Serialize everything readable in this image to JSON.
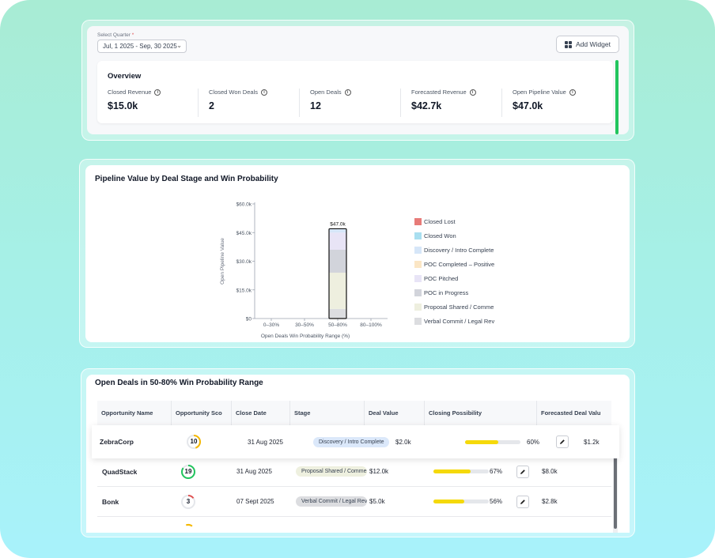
{
  "quarter": {
    "label": "Select Quarter",
    "required_mark": "*",
    "value": "Jul, 1 2025 - Sep, 30 2025"
  },
  "toolbar": {
    "add_widget_label": "Add Widget"
  },
  "overview": {
    "title": "Overview",
    "metrics": [
      {
        "label": "Closed Revenue",
        "value": "$15.0k"
      },
      {
        "label": "Closed Won Deals",
        "value": "2"
      },
      {
        "label": "Open Deals",
        "value": "12"
      },
      {
        "label": "Forecasted Revenue",
        "value": "$42.7k"
      },
      {
        "label": "Open Pipeline Value",
        "value": "$47.0k"
      }
    ],
    "accent_color": "#22c55e"
  },
  "pipeline": {
    "title": "Pipeline Value by Deal Stage and Win Probability"
  },
  "chart_data": {
    "type": "bar",
    "stacked": true,
    "title": "Pipeline Value by Deal Stage and Win Probability",
    "xlabel": "Open Deals Win Probability Range (%)",
    "ylabel": "Open Pipeline Value",
    "categories": [
      "0–30%",
      "30–50%",
      "50–80%",
      "80–100%"
    ],
    "yticks": [
      "$0",
      "$15.0k",
      "$30.0k",
      "$45.0k",
      "$60.0k"
    ],
    "ylim": [
      0,
      60000
    ],
    "total_label": "$47.0k",
    "total_category": "50–80%",
    "grid": false,
    "legend_position": "right",
    "series": [
      {
        "name": "Closed Lost",
        "color": "#e77b78",
        "values": [
          0,
          0,
          0,
          0
        ]
      },
      {
        "name": "Closed Won",
        "color": "#a9dff0",
        "values": [
          0,
          0,
          0,
          0
        ]
      },
      {
        "name": "Discovery / Intro Completed",
        "color": "#d6e6f8",
        "values": [
          0,
          0,
          2000,
          0
        ]
      },
      {
        "name": "POC Completed – Positive",
        "color": "#fbe6c5",
        "values": [
          0,
          0,
          0,
          0
        ]
      },
      {
        "name": "POC Pitched",
        "color": "#e8e4f6",
        "values": [
          0,
          0,
          9000,
          0
        ]
      },
      {
        "name": "POC in Progress",
        "color": "#d2d4db",
        "values": [
          0,
          0,
          12000,
          0
        ]
      },
      {
        "name": "Proposal Shared / Commercials",
        "color": "#eeefdf",
        "values": [
          0,
          0,
          19000,
          0
        ]
      },
      {
        "name": "Verbal Commit / Legal Review",
        "color": "#dcdde0",
        "values": [
          0,
          0,
          5000,
          0
        ]
      }
    ],
    "legend_labels": [
      "Closed Lost",
      "Closed Won",
      "Discovery / Intro Complete",
      "POC Completed – Positive",
      "POC Pitched",
      "POC in Progress",
      "Proposal Shared / Comme",
      "Verbal Commit / Legal Rev"
    ]
  },
  "deals": {
    "title": "Open Deals in 50-80% Win Probability Range",
    "columns": [
      "Opportunity Name",
      "Opportunity Sco",
      "Close Date",
      "Stage",
      "Deal Value",
      "Closing Possibility",
      "Forecasted Deal Valu"
    ],
    "rows": [
      {
        "name": "ZebraCorp",
        "score": "10",
        "score_fraction": 0.45,
        "score_color": "#f5b800",
        "close_date": "31 Aug 2025",
        "stage": "Discovery / Intro Complete",
        "stage_color": "#dbe8fa",
        "deal_value": "$2.0k",
        "possibility": "60%",
        "possibility_fraction": 0.6,
        "forecast": "$1.2k"
      },
      {
        "name": "QuadStack",
        "score": "19",
        "score_fraction": 0.85,
        "score_color": "#22c55e",
        "close_date": "31 Aug 2025",
        "stage": "Proposal Shared / Comme",
        "stage_color": "#eef0df",
        "deal_value": "$12.0k",
        "possibility": "67%",
        "possibility_fraction": 0.67,
        "forecast": "$8.0k"
      },
      {
        "name": "Bonk",
        "score": "3",
        "score_fraction": 0.15,
        "score_color": "#e05252",
        "close_date": "07 Sept 2025",
        "stage": "Verbal Commit / Legal Rev",
        "stage_color": "#dcdde0",
        "deal_value": "$5.0k",
        "possibility": "56%",
        "possibility_fraction": 0.56,
        "forecast": "$2.8k"
      }
    ]
  }
}
